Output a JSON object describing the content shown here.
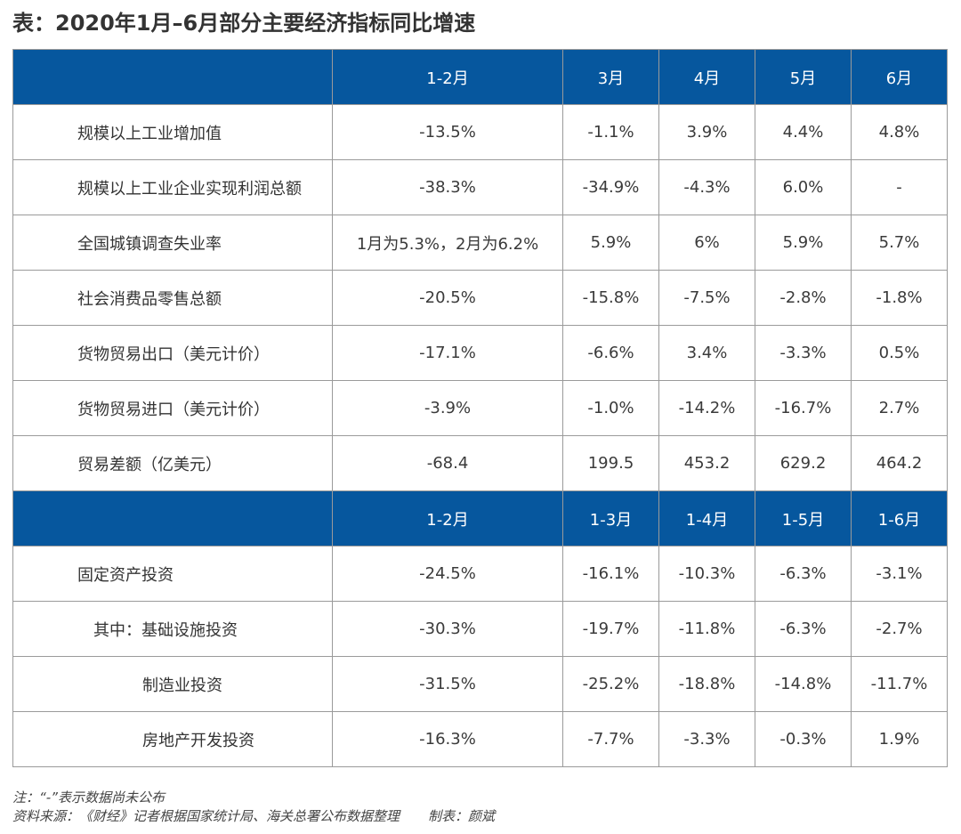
{
  "title": "表：2020年1月–6月部分主要经济指标同比增速",
  "header1": [
    "",
    "1-2月",
    "3月",
    "4月",
    "5月",
    "6月"
  ],
  "rows1": [
    {
      "label": "规模以上工业增加值",
      "values": [
        "-13.5%",
        "-1.1%",
        "3.9%",
        "4.4%",
        "4.8%"
      ]
    },
    {
      "label": "规模以上工业企业实现利润总额",
      "values": [
        "-38.3%",
        "-34.9%",
        "-4.3%",
        "6.0%",
        "-"
      ]
    },
    {
      "label": "全国城镇调查失业率",
      "values": [
        "1月为5.3%，2月为6.2%",
        "5.9%",
        "6%",
        "5.9%",
        "5.7%"
      ]
    },
    {
      "label": "社会消费品零售总额",
      "values": [
        "-20.5%",
        "-15.8%",
        "-7.5%",
        "-2.8%",
        "-1.8%"
      ]
    },
    {
      "label": "货物贸易出口（美元计价）",
      "values": [
        "-17.1%",
        "-6.6%",
        "3.4%",
        "-3.3%",
        "0.5%"
      ]
    },
    {
      "label": "货物贸易进口（美元计价）",
      "values": [
        "-3.9%",
        "-1.0%",
        "-14.2%",
        "-16.7%",
        "2.7%"
      ]
    },
    {
      "label": "贸易差额（亿美元）",
      "values": [
        "-68.4",
        "199.5",
        "453.2",
        "629.2",
        "464.2"
      ]
    }
  ],
  "header2": [
    "",
    "1-2月",
    "1-3月",
    "1-4月",
    "1-5月",
    "1-6月"
  ],
  "rows2": [
    {
      "label": "固定资产投资",
      "indent": 0,
      "values": [
        "-24.5%",
        "-16.1%",
        "-10.3%",
        "-6.3%",
        "-3.1%"
      ]
    },
    {
      "label": "其中：基础设施投资",
      "indent": 1,
      "values": [
        "-30.3%",
        "-19.7%",
        "-11.8%",
        "-6.3%",
        "-2.7%"
      ]
    },
    {
      "label": "制造业投资",
      "indent": 2,
      "values": [
        "-31.5%",
        "-25.2%",
        "-18.8%",
        "-14.8%",
        "-11.7%"
      ]
    },
    {
      "label": "房地产开发投资",
      "indent": 2,
      "values": [
        "-16.3%",
        "-7.7%",
        "-3.3%",
        "-0.3%",
        "1.9%"
      ]
    }
  ],
  "footnotes": {
    "note": "注：“-”表示数据尚未公布",
    "source": "资料来源：《财经》记者根据国家统计局、海关总署公布数据整理",
    "author": "制表：颜斌"
  },
  "colors": {
    "header_bg": "#06579e",
    "header_text": "#ffffff",
    "border": "#9a9a9a"
  }
}
